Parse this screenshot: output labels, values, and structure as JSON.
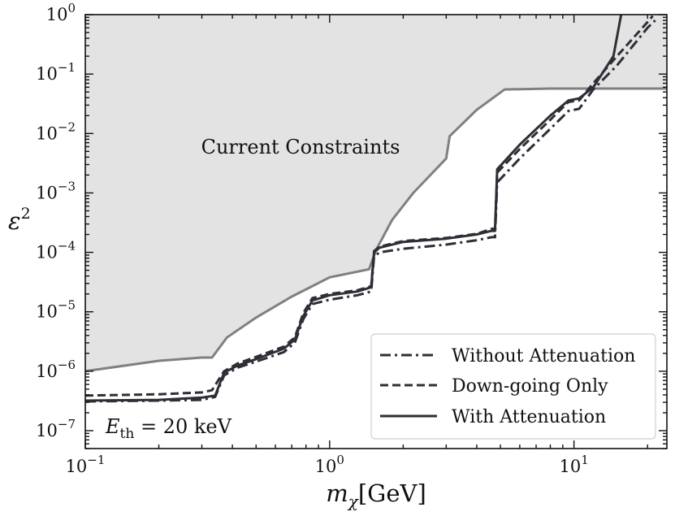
{
  "chart_data": {
    "type": "line",
    "title": "",
    "xlabel": "m_χ[GeV]",
    "xlabel_parts": {
      "base": "m",
      "sub": "χ",
      "unit": "[GeV]"
    },
    "ylabel": "ε²",
    "ylabel_parts": {
      "base": "ε",
      "sup": "2"
    },
    "xscale": "log",
    "yscale": "log",
    "xlim": [
      0.1,
      24
    ],
    "ylim": [
      5e-08,
      1
    ],
    "x_ticks": [
      {
        "value": 0.1,
        "base": "10",
        "exp": "−1"
      },
      {
        "value": 1,
        "base": "10",
        "exp": "0"
      },
      {
        "value": 10,
        "base": "10",
        "exp": "1"
      }
    ],
    "y_ticks": [
      {
        "value": 1e-07,
        "base": "10",
        "exp": "−7"
      },
      {
        "value": 1e-06,
        "base": "10",
        "exp": "−6"
      },
      {
        "value": 1e-05,
        "base": "10",
        "exp": "−5"
      },
      {
        "value": 0.0001,
        "base": "10",
        "exp": "−4"
      },
      {
        "value": 0.001,
        "base": "10",
        "exp": "−3"
      },
      {
        "value": 0.01,
        "base": "10",
        "exp": "−2"
      },
      {
        "value": 0.1,
        "base": "10",
        "exp": "−1"
      },
      {
        "value": 1,
        "base": "10",
        "exp": "0"
      }
    ],
    "constraint_region": {
      "label": "Current Constraints",
      "fill_color": "#e3e3e3",
      "line_color": "#808080",
      "x": [
        0.1,
        0.2,
        0.3,
        0.33,
        0.38,
        0.5,
        0.7,
        1.0,
        1.45,
        1.55,
        1.8,
        2.2,
        3.0,
        3.1,
        4.0,
        5.2,
        8.0,
        10.0,
        24
      ],
      "y": [
        1e-06,
        1.5e-06,
        1.7e-06,
        1.7e-06,
        3.7e-06,
        8e-06,
        1.8e-05,
        3.8e-05,
        5.2e-05,
        0.00011,
        0.00035,
        0.001,
        0.0038,
        0.009,
        0.025,
        0.055,
        0.057,
        0.057,
        0.057
      ]
    },
    "series": [
      {
        "name": "Without Attenuation",
        "style": "dashdot",
        "color": "#2e2e36",
        "x": [
          0.1,
          0.2,
          0.3,
          0.34,
          0.37,
          0.42,
          0.5,
          0.65,
          0.72,
          0.78,
          0.85,
          1.0,
          1.3,
          1.48,
          1.52,
          1.6,
          2.0,
          3.0,
          4.0,
          4.6,
          4.75,
          4.85,
          6.0,
          8.0,
          9.5,
          10.5,
          12.0,
          15.0,
          20.0,
          21.5
        ],
        "y": [
          3.1e-07,
          3.2e-07,
          3.3e-07,
          3.7e-07,
          8.5e-07,
          1.15e-06,
          1.45e-06,
          2.1e-06,
          3e-06,
          7.5e-06,
          1.35e-05,
          1.6e-05,
          1.9e-05,
          2.2e-05,
          8.5e-05,
          0.0001,
          0.000115,
          0.000135,
          0.00016,
          0.00018,
          0.00018,
          0.0015,
          0.0038,
          0.012,
          0.024,
          0.026,
          0.055,
          0.14,
          0.6,
          0.8
        ]
      },
      {
        "name": "Down-going Only",
        "style": "dashed",
        "color": "#2e2e36",
        "x": [
          0.1,
          0.2,
          0.3,
          0.33,
          0.37,
          0.42,
          0.5,
          0.65,
          0.72,
          0.78,
          0.85,
          1.0,
          1.3,
          1.48,
          1.52,
          1.6,
          2.0,
          3.0,
          4.0,
          4.6,
          4.75,
          4.85,
          6.0,
          8.0,
          9.5,
          10.5,
          12.0,
          15.0,
          20.0,
          21.0
        ],
        "y": [
          3.9e-07,
          4.1e-07,
          4.4e-07,
          4.8e-07,
          1e-06,
          1.35e-06,
          1.75e-06,
          2.6e-06,
          3.7e-06,
          9.5e-06,
          1.7e-05,
          2e-05,
          2.3e-05,
          2.7e-05,
          0.000105,
          0.000125,
          0.000155,
          0.000175,
          0.000205,
          0.00025,
          0.00025,
          0.0022,
          0.0055,
          0.017,
          0.034,
          0.036,
          0.07,
          0.2,
          0.75,
          0.95
        ]
      },
      {
        "name": "With Attenuation",
        "style": "solid",
        "color": "#2e2e36",
        "x": [
          0.1,
          0.2,
          0.3,
          0.34,
          0.37,
          0.42,
          0.5,
          0.65,
          0.72,
          0.78,
          0.85,
          1.0,
          1.3,
          1.48,
          1.52,
          1.6,
          2.0,
          3.0,
          4.0,
          4.6,
          4.75,
          4.85,
          6.0,
          8.0,
          9.5,
          10.5,
          12.0,
          14.5,
          15.6
        ],
        "y": [
          3.2e-07,
          3.3e-07,
          3.6e-07,
          3.9e-07,
          9.5e-07,
          1.25e-06,
          1.6e-06,
          2.4e-06,
          3.4e-06,
          8.5e-06,
          1.55e-05,
          1.9e-05,
          2.2e-05,
          2.6e-05,
          0.0001,
          0.00012,
          0.00015,
          0.00017,
          0.0002,
          0.00023,
          0.00023,
          0.0025,
          0.0065,
          0.02,
          0.036,
          0.039,
          0.06,
          0.2,
          1.0
        ]
      }
    ],
    "annotation": {
      "base": "E",
      "sub": "th",
      "rest": " = 20 keV"
    },
    "legend": {
      "position": "lower-right",
      "entries": [
        "Without Attenuation",
        "Down-going Only",
        "With Attenuation"
      ]
    }
  }
}
